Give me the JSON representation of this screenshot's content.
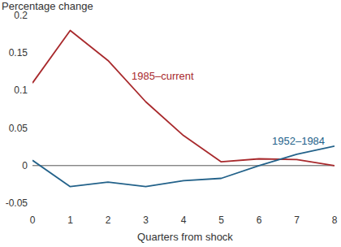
{
  "chart_data": {
    "type": "line",
    "y_label": "Percentage change",
    "x_label": "Quarters from shock",
    "x": [
      0,
      1,
      2,
      3,
      4,
      5,
      6,
      7,
      8
    ],
    "series": [
      {
        "name": "1985–current",
        "color": "#a8292c",
        "values": [
          0.11,
          0.18,
          0.14,
          0.085,
          0.04,
          0.005,
          0.009,
          0.008,
          0.0
        ]
      },
      {
        "name": "1952–1984",
        "color": "#23628a",
        "values": [
          0.007,
          -0.028,
          -0.022,
          -0.028,
          -0.02,
          -0.017,
          0.0,
          0.015,
          0.026
        ]
      }
    ],
    "xlim": [
      0,
      8
    ],
    "xticks": [
      0,
      1,
      2,
      3,
      4,
      5,
      6,
      7,
      8
    ],
    "ylim": [
      -0.05,
      0.2
    ],
    "yticks": [
      -0.05,
      0,
      0.05,
      0.1,
      0.15,
      0.2
    ],
    "grid": false
  }
}
